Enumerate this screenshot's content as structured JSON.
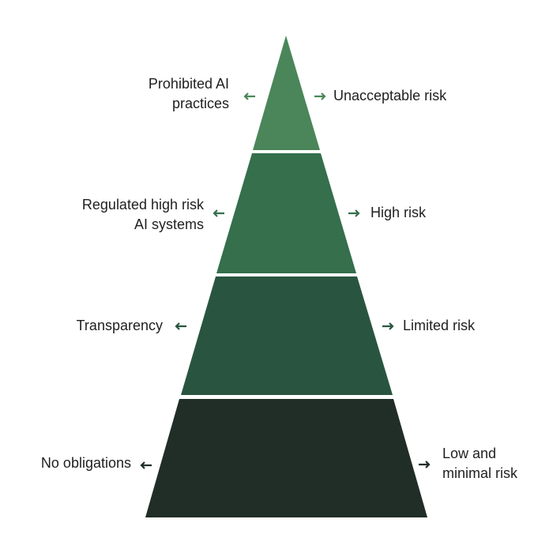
{
  "colors": {
    "tier1": "#4a8659",
    "tier2": "#356f4c",
    "tier3": "#295540",
    "tier4": "#202e27",
    "text": "#1f1f1f"
  },
  "tiers": [
    {
      "risk": [
        "Unacceptable risk"
      ],
      "obligation": [
        "Prohibited AI",
        "practices"
      ]
    },
    {
      "risk": [
        "High risk"
      ],
      "obligation": [
        "Regulated high risk",
        "AI systems"
      ]
    },
    {
      "risk": [
        "Limited risk"
      ],
      "obligation": [
        "Transparency"
      ]
    },
    {
      "risk": [
        "Low and",
        "minimal risk"
      ],
      "obligation": [
        "No obligations"
      ]
    }
  ],
  "icons": {
    "left": "arrow-left-icon",
    "right": "arrow-right-icon"
  }
}
